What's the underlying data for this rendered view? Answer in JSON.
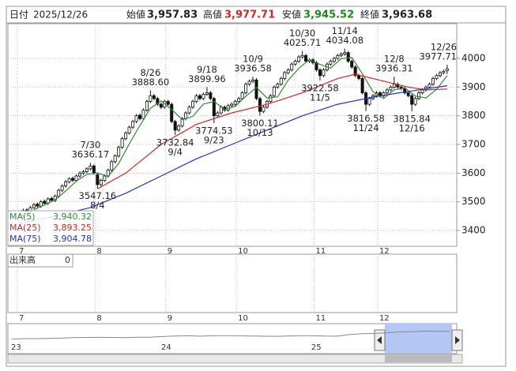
{
  "header": {
    "date_label": "日付",
    "date": "2025/12/26",
    "open_label": "始値",
    "open": "3,957.83",
    "high_label": "高値",
    "high": "3,977.71",
    "low_label": "安値",
    "low": "3,945.52",
    "close_label": "終値",
    "close": "3,963.68"
  },
  "chart_data": [
    {
      "type": "candlestick",
      "categories": [
        "7",
        null,
        null,
        null,
        null,
        null,
        null,
        null,
        null,
        null,
        null,
        null,
        null,
        null,
        null,
        null,
        null,
        null,
        null,
        null,
        null,
        null,
        "8",
        null,
        null,
        null,
        null,
        null,
        null,
        null,
        null,
        null,
        null,
        null,
        null,
        null,
        null,
        null,
        null,
        null,
        null,
        null,
        "9",
        null,
        null,
        null,
        null,
        null,
        null,
        null,
        null,
        null,
        null,
        null,
        null,
        null,
        null,
        null,
        null,
        null,
        null,
        null,
        "10",
        null,
        null,
        null,
        null,
        null,
        null,
        null,
        null,
        null,
        null,
        null,
        null,
        null,
        null,
        null,
        null,
        null,
        null,
        null,
        null,
        null,
        "11",
        null,
        null,
        null,
        null,
        null,
        null,
        null,
        null,
        null,
        null,
        null,
        null,
        null,
        null,
        null,
        null,
        null,
        "12",
        null,
        null,
        null,
        null,
        null,
        null,
        null,
        null,
        null,
        null,
        null,
        null,
        null,
        null,
        null,
        null,
        null,
        null,
        null
      ],
      "ohlc": [
        [
          3450,
          3462,
          3444,
          3455
        ],
        [
          3455,
          3476,
          3449,
          3470
        ],
        [
          3472,
          3478,
          3459,
          3465
        ],
        [
          3465,
          3486,
          3459,
          3480
        ],
        [
          3480,
          3496,
          3474,
          3490
        ],
        [
          3492,
          3498,
          3479,
          3485
        ],
        [
          3485,
          3506,
          3479,
          3500
        ],
        [
          3502,
          3508,
          3489,
          3495
        ],
        [
          3495,
          3516,
          3489,
          3510
        ],
        [
          3512,
          3518,
          3499,
          3505
        ],
        [
          3505,
          3526,
          3499,
          3520
        ],
        [
          3520,
          3546,
          3514,
          3540
        ],
        [
          3540,
          3561,
          3534,
          3555
        ],
        [
          3555,
          3576,
          3549,
          3570
        ],
        [
          3570,
          3586,
          3564,
          3580
        ],
        [
          3582,
          3588,
          3569,
          3575
        ],
        [
          3575,
          3596,
          3569,
          3590
        ],
        [
          3590,
          3606,
          3584,
          3600
        ],
        [
          3600,
          3611,
          3594,
          3605
        ],
        [
          3605,
          3621,
          3599,
          3615
        ],
        [
          3615,
          3636.17,
          3609,
          3625
        ],
        [
          3625,
          3631,
          3594,
          3600
        ],
        [
          3595,
          3601,
          3547.16,
          3560
        ],
        [
          3560,
          3581,
          3554,
          3575
        ],
        [
          3575,
          3596,
          3569,
          3590
        ],
        [
          3590,
          3616,
          3584,
          3610
        ],
        [
          3610,
          3646,
          3604,
          3640
        ],
        [
          3640,
          3666,
          3634,
          3660
        ],
        [
          3660,
          3696,
          3654,
          3690
        ],
        [
          3690,
          3726,
          3684,
          3720
        ],
        [
          3720,
          3746,
          3714,
          3740
        ],
        [
          3740,
          3766,
          3734,
          3760
        ],
        [
          3760,
          3786,
          3754,
          3780
        ],
        [
          3780,
          3806,
          3774,
          3800
        ],
        [
          3802,
          3808,
          3784,
          3790
        ],
        [
          3790,
          3826,
          3784,
          3820
        ],
        [
          3820,
          3856,
          3814,
          3850
        ],
        [
          3850,
          3888.6,
          3844,
          3870
        ],
        [
          3870,
          3876,
          3854,
          3860
        ],
        [
          3860,
          3866,
          3834,
          3840
        ],
        [
          3840,
          3846,
          3824,
          3830
        ],
        [
          3830,
          3856,
          3824,
          3850
        ],
        [
          3850,
          3856,
          3834,
          3840
        ],
        [
          3840,
          3846,
          3774,
          3780
        ],
        [
          3780,
          3786,
          3732.84,
          3750
        ],
        [
          3750,
          3771,
          3744,
          3765
        ],
        [
          3765,
          3796,
          3759,
          3790
        ],
        [
          3790,
          3816,
          3784,
          3810
        ],
        [
          3810,
          3836,
          3804,
          3830
        ],
        [
          3830,
          3856,
          3824,
          3850
        ],
        [
          3850,
          3876,
          3844,
          3870
        ],
        [
          3870,
          3876,
          3854,
          3860
        ],
        [
          3860,
          3881,
          3854,
          3875
        ],
        [
          3875,
          3899.96,
          3869,
          3880
        ],
        [
          3880,
          3886,
          3854,
          3860
        ],
        [
          3860,
          3866,
          3774.53,
          3800
        ],
        [
          3800,
          3816,
          3794,
          3810
        ],
        [
          3810,
          3836,
          3804,
          3830
        ],
        [
          3830,
          3836,
          3814,
          3820
        ],
        [
          3820,
          3841,
          3814,
          3835
        ],
        [
          3835,
          3846,
          3829,
          3840
        ],
        [
          3840,
          3856,
          3834,
          3850
        ],
        [
          3850,
          3866,
          3844,
          3860
        ],
        [
          3860,
          3886,
          3854,
          3880
        ],
        [
          3880,
          3916,
          3874,
          3910
        ],
        [
          3910,
          3926,
          3904,
          3920
        ],
        [
          3920,
          3936.58,
          3914,
          3925
        ],
        [
          3925,
          3931,
          3854,
          3860
        ],
        [
          3860,
          3866,
          3800.11,
          3815
        ],
        [
          3815,
          3836,
          3809,
          3830
        ],
        [
          3830,
          3856,
          3824,
          3850
        ],
        [
          3850,
          3876,
          3844,
          3870
        ],
        [
          3870,
          3906,
          3864,
          3900
        ],
        [
          3900,
          3916,
          3894,
          3910
        ],
        [
          3910,
          3936,
          3904,
          3930
        ],
        [
          3930,
          3956,
          3924,
          3950
        ],
        [
          3950,
          3966,
          3944,
          3960
        ],
        [
          3960,
          3986,
          3954,
          3980
        ],
        [
          3980,
          3996,
          3974,
          3990
        ],
        [
          3990,
          4011,
          3984,
          4005
        ],
        [
          4005,
          4025.71,
          3999,
          4010
        ],
        [
          4010,
          4016,
          3984,
          3990
        ],
        [
          3990,
          4001,
          3984,
          3995
        ],
        [
          3995,
          4001,
          3979,
          3985
        ],
        [
          3985,
          3991,
          3954,
          3960
        ],
        [
          3960,
          3966,
          3922.58,
          3940
        ],
        [
          3940,
          3966,
          3934,
          3960
        ],
        [
          3960,
          3986,
          3954,
          3980
        ],
        [
          3980,
          3996,
          3974,
          3990
        ],
        [
          3990,
          4006,
          3984,
          4000
        ],
        [
          4000,
          4016,
          3994,
          4010
        ],
        [
          4010,
          4021,
          4004,
          4015
        ],
        [
          4015,
          4034.08,
          4009,
          4020
        ],
        [
          4020,
          4026,
          3984,
          3990
        ],
        [
          3990,
          3996,
          3964,
          3970
        ],
        [
          3970,
          3976,
          3934,
          3940
        ],
        [
          3940,
          3946,
          3924,
          3930
        ],
        [
          3930,
          3936,
          3874,
          3880
        ],
        [
          3880,
          3886,
          3816.58,
          3840
        ],
        [
          3840,
          3866,
          3834,
          3860
        ],
        [
          3860,
          3876,
          3854,
          3870
        ],
        [
          3870,
          3886,
          3864,
          3880
        ],
        [
          3880,
          3886,
          3864,
          3870
        ],
        [
          3870,
          3886,
          3864,
          3880
        ],
        [
          3880,
          3896,
          3874,
          3890
        ],
        [
          3890,
          3906,
          3884,
          3900
        ],
        [
          3900,
          3936.31,
          3894,
          3910
        ],
        [
          3910,
          3916,
          3894,
          3900
        ],
        [
          3900,
          3906,
          3889,
          3895
        ],
        [
          3895,
          3901,
          3874,
          3880
        ],
        [
          3880,
          3886,
          3864,
          3870
        ],
        [
          3870,
          3876,
          3815.84,
          3840
        ],
        [
          3840,
          3866,
          3834,
          3860
        ],
        [
          3860,
          3886,
          3854,
          3880
        ],
        [
          3880,
          3896,
          3874,
          3890
        ],
        [
          3890,
          3906,
          3884,
          3900
        ],
        [
          3900,
          3916,
          3894,
          3910
        ],
        [
          3910,
          3936,
          3904,
          3930
        ],
        [
          3930,
          3946,
          3924,
          3940
        ],
        [
          3940,
          3956,
          3934,
          3950
        ],
        [
          3950,
          3961,
          3944,
          3955
        ],
        [
          3957.83,
          3977.71,
          3945.52,
          3963.68
        ]
      ],
      "up_color": "#ffffff",
      "down_color": "#111111",
      "series": [
        {
          "name": "MA(5)",
          "color": "#2e8b2e",
          "legend_value": "3,940.32",
          "x": [
            4,
            7,
            10,
            13,
            16,
            19,
            22,
            25,
            28,
            31,
            34,
            37,
            40,
            43,
            46,
            49,
            52,
            55,
            58,
            61,
            64,
            67,
            70,
            73,
            76,
            79,
            82,
            85,
            88,
            91,
            94,
            97,
            100,
            103,
            106,
            109,
            112,
            115,
            118,
            121
          ],
          "values": [
            3472,
            3489,
            3507,
            3538,
            3572,
            3596,
            3601,
            3588,
            3634,
            3702,
            3766,
            3826,
            3852,
            3822,
            3787,
            3798,
            3841,
            3850,
            3822,
            3833,
            3868,
            3899,
            3862,
            3866,
            3924,
            3965,
            3996,
            3979,
            3966,
            3999,
            4003,
            3946,
            3884,
            3860,
            3890,
            3897,
            3869,
            3862,
            3892,
            3940.32
          ]
        },
        {
          "name": "MA(25)",
          "color": "#e02020",
          "legend_value": "3,893.25",
          "x": [
            22,
            30,
            40,
            50,
            60,
            70,
            80,
            90,
            95,
            100,
            105,
            110,
            115,
            121
          ],
          "values": [
            3545,
            3600,
            3700,
            3770,
            3810,
            3840,
            3880,
            3930,
            3945,
            3930,
            3915,
            3900,
            3890,
            3893.25
          ]
        },
        {
          "name": "MA(75)",
          "color": "#2030e0",
          "legend_value": "3,904.78",
          "x": [
            0,
            10,
            20,
            30,
            40,
            50,
            60,
            70,
            80,
            90,
            100,
            110,
            121
          ],
          "values": [
            3425,
            3450,
            3480,
            3530,
            3590,
            3650,
            3700,
            3750,
            3800,
            3840,
            3865,
            3885,
            3904.78
          ]
        }
      ],
      "annotations": [
        {
          "date": "7/30",
          "x": 20,
          "value": 3636.17
        },
        {
          "date": "8/4",
          "x": 22,
          "value": 3547.16
        },
        {
          "date": "8/26",
          "x": 37,
          "value": 3888.6,
          "value_label": "3888.60"
        },
        {
          "date": "9/4",
          "x": 44,
          "value": 3732.84
        },
        {
          "date": "9/18",
          "x": 53,
          "value": 3899.96
        },
        {
          "date": "9/23",
          "x": 55,
          "value": 3774.53
        },
        {
          "date": "10/9",
          "x": 66,
          "value": 3936.58
        },
        {
          "date": "10/13",
          "x": 68,
          "value": 3800.11
        },
        {
          "date": "10/30",
          "x": 80,
          "value": 4025.71
        },
        {
          "date": "11/5",
          "x": 85,
          "value": 3922.58
        },
        {
          "date": "11/14",
          "x": 92,
          "value": 4034.08
        },
        {
          "date": "11/24",
          "x": 98,
          "value": 3816.58
        },
        {
          "date": "12/8",
          "x": 106,
          "value": 3936.31
        },
        {
          "date": "12/16",
          "x": 111,
          "value": 3815.84
        },
        {
          "date": "12/26",
          "x": 121,
          "value": 3977.71
        }
      ],
      "ylim": [
        3345,
        4121
      ],
      "yticks": [
        3400,
        3500,
        3600,
        3700,
        3800,
        3900,
        4000
      ],
      "grid": true,
      "volume_label": "出来高",
      "volume": 0
    },
    {
      "type": "line",
      "color": "#888888",
      "categories": [
        "23",
        null,
        null,
        null,
        null,
        null,
        null,
        null,
        null,
        null,
        null,
        null,
        "24",
        null,
        null,
        null,
        null,
        null,
        null,
        null,
        null,
        null,
        null,
        null,
        "25",
        null,
        null,
        null,
        null,
        null,
        null,
        null,
        null,
        null,
        null,
        null
      ],
      "values": [
        1890,
        1990,
        2000,
        2050,
        2130,
        2290,
        2320,
        2330,
        2320,
        2250,
        2370,
        2370,
        2550,
        2680,
        2770,
        2660,
        2770,
        2810,
        2790,
        2710,
        2650,
        2620,
        2680,
        2780,
        2790,
        2680,
        2660,
        3100,
        3300,
        3400,
        3550,
        3800,
        3850,
        4000,
        3950,
        3960
      ],
      "ylim": [
        -2000,
        6000
      ]
    }
  ]
}
